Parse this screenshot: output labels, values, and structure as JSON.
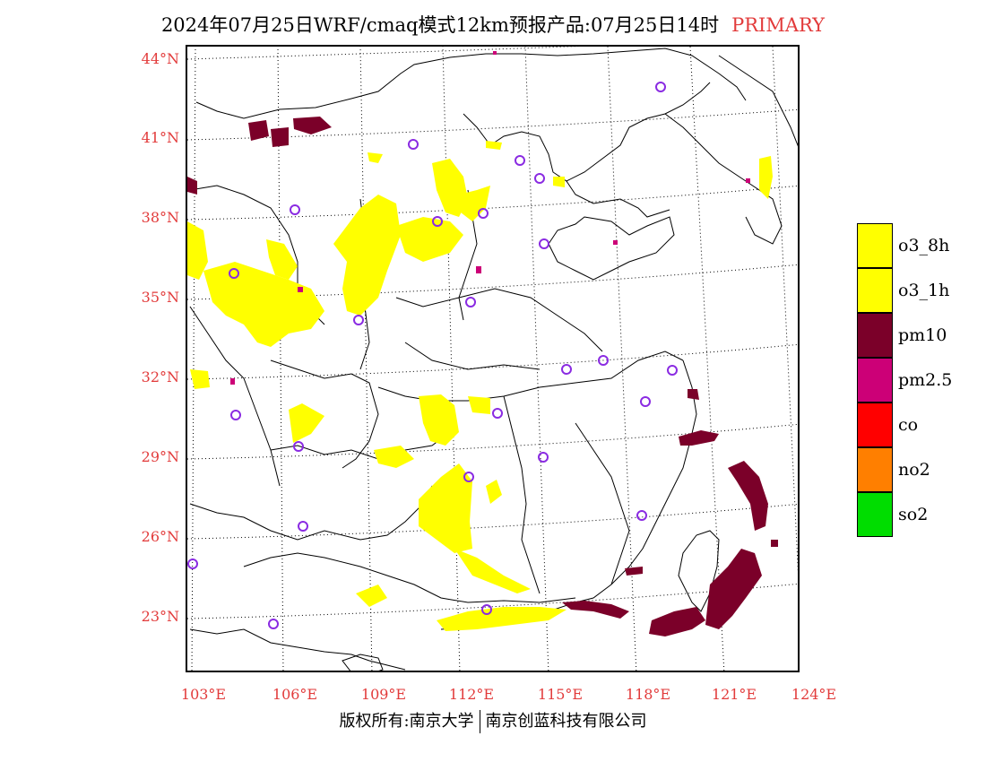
{
  "title": {
    "main": "2024年07月25日WRF/cmaq模式12km预报产品:07月25日14时",
    "tag": "PRIMARY"
  },
  "axes": {
    "lat_labels": [
      "44°N",
      "41°N",
      "38°N",
      "35°N",
      "32°N",
      "29°N",
      "26°N",
      "23°N"
    ],
    "lon_labels": [
      "103°E",
      "106°E",
      "109°E",
      "112°E",
      "115°E",
      "118°E",
      "121°E",
      "124°E"
    ]
  },
  "legend": [
    {
      "label": "o3_8h",
      "color": "#ffff00"
    },
    {
      "label": "o3_1h",
      "color": "#ffff00"
    },
    {
      "label": "pm10",
      "color": "#7b0029"
    },
    {
      "label": "pm2.5",
      "color": "#cc0077"
    },
    {
      "label": "co",
      "color": "#ff0000"
    },
    {
      "label": "no2",
      "color": "#ff7f00"
    },
    {
      "label": "so2",
      "color": "#00dd00"
    }
  ],
  "footer": {
    "left": "版权所有:南京大学",
    "right": "南京创蓝科技有限公司"
  },
  "colors": {
    "o3": "#ffff00",
    "pm10": "#7b0029",
    "pm25": "#cc0077",
    "station_marker": "#8a2be2",
    "axis_text": "#e23b3b"
  }
}
